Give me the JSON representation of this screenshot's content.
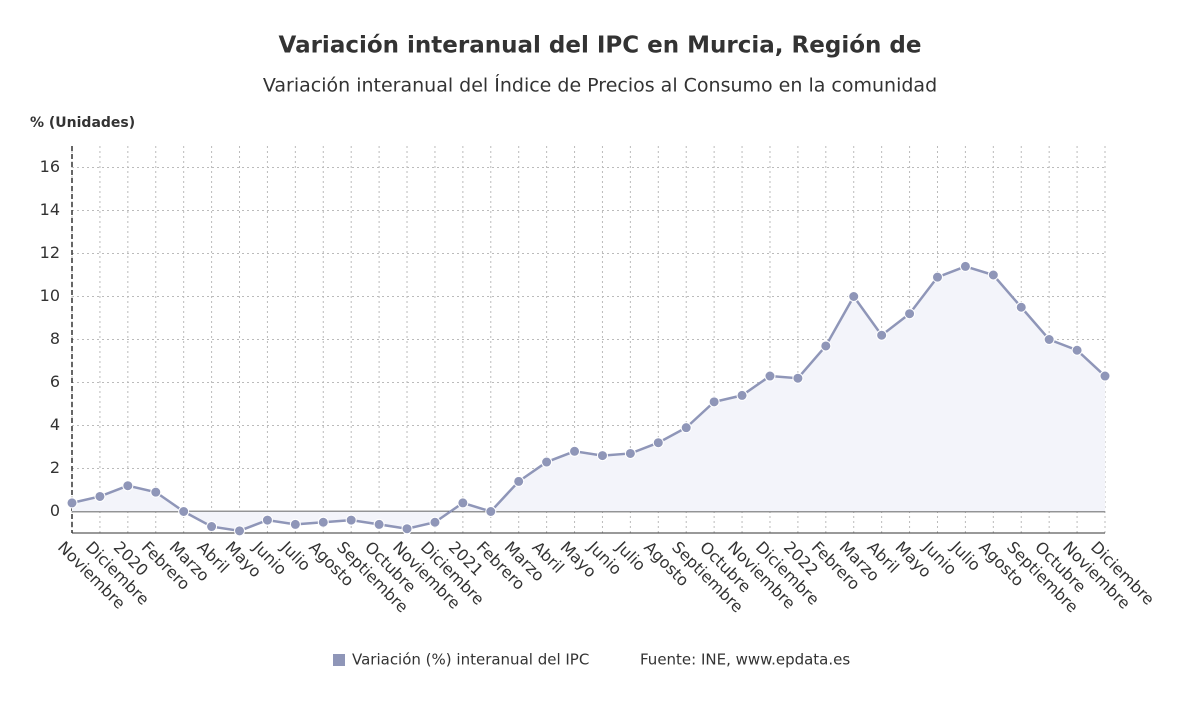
{
  "chart_data": {
    "type": "line",
    "title": "Variación interanual del IPC en Murcia, Región de",
    "subtitle": "Variación interanual del Índice de Precios al Consumo en la comunidad",
    "y_label": "% (Unidades)",
    "source": "Fuente: INE, www.epdata.es",
    "categories": [
      "Noviembre",
      "Diciembre",
      "2020",
      "Febrero",
      "Marzo",
      "Abril",
      "Mayo",
      "Junio",
      "Julio",
      "Agosto",
      "Septiembre",
      "Octubre",
      "Noviembre",
      "Diciembre",
      "2021",
      "Febrero",
      "Marzo",
      "Abril",
      "Mayo",
      "Junio",
      "Julio",
      "Agosto",
      "Septiembre",
      "Octubre",
      "Noviembre",
      "Diciembre",
      "2022",
      "Febrero",
      "Marzo",
      "Abril",
      "Mayo",
      "Junio",
      "Julio",
      "Agosto",
      "Septiembre",
      "Octubre",
      "Noviembre",
      "Diciembre"
    ],
    "series": [
      {
        "name": "Variación (%) interanual del IPC",
        "color": "#8f96b8",
        "values": [
          0.4,
          0.7,
          1.2,
          0.9,
          0.0,
          -0.7,
          -0.9,
          -0.4,
          -0.6,
          -0.5,
          -0.4,
          -0.6,
          -0.8,
          -0.5,
          0.4,
          0.0,
          1.4,
          2.3,
          2.8,
          2.6,
          2.7,
          3.2,
          3.9,
          5.1,
          5.4,
          6.3,
          6.2,
          7.7,
          10.0,
          8.2,
          9.2,
          10.9,
          11.4,
          11.0,
          9.5,
          8.0,
          7.5,
          6.3
        ]
      }
    ],
    "ylim": [
      -1,
      17
    ],
    "yticks": [
      0,
      2,
      4,
      6,
      8,
      10,
      12,
      14,
      16
    ],
    "grid": true,
    "area_fill": "#f3f4fa",
    "legend": "bottom"
  }
}
